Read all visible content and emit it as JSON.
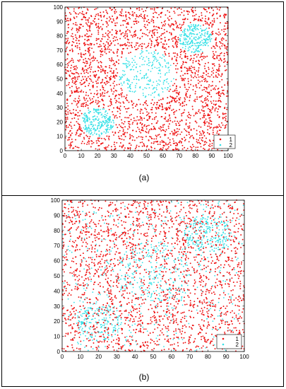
{
  "colors": {
    "class1": "#ee1111",
    "class2": "#33e0e6"
  },
  "chart_data": [
    {
      "type": "scatter",
      "caption": "(a)",
      "xlim": [
        0,
        100
      ],
      "ylim": [
        0,
        100
      ],
      "xticks": [
        "0",
        "10",
        "20",
        "30",
        "40",
        "50",
        "60",
        "70",
        "80",
        "90",
        "100"
      ],
      "yticks": [
        "0",
        "10",
        "20",
        "30",
        "40",
        "50",
        "60",
        "70",
        "80",
        "90",
        "100"
      ],
      "grid": false,
      "legend": "bottom-right",
      "series": [
        {
          "name": "1",
          "color": "#ee1111",
          "count": 2400,
          "distribution": "uniform background excluding circular clusters"
        },
        {
          "name": "2",
          "color": "#33e0e6",
          "count": 700,
          "distribution": "three circular clusters",
          "clusters": [
            {
              "cx": 50,
              "cy": 53,
              "r": 17
            },
            {
              "cx": 20,
              "cy": 20,
              "r": 10
            },
            {
              "cx": 80,
              "cy": 78,
              "r": 10
            }
          ]
        }
      ]
    },
    {
      "type": "scatter",
      "caption": "(b)",
      "xlim": [
        0,
        100
      ],
      "ylim": [
        0,
        100
      ],
      "xticks": [
        "0",
        "10",
        "20",
        "30",
        "40",
        "50",
        "60",
        "70",
        "80",
        "90",
        "100"
      ],
      "yticks": [
        "0",
        "10",
        "20",
        "30",
        "40",
        "50",
        "60",
        "70",
        "80",
        "90",
        "100"
      ],
      "grid": false,
      "legend": "bottom-right",
      "series": [
        {
          "name": "1",
          "color": "#ee1111",
          "count": 2100,
          "distribution": "uniform background with noise"
        },
        {
          "name": "2",
          "color": "#33e0e6",
          "count": 1100,
          "distribution": "diffuse clusters mixed with scattered points",
          "clusters": [
            {
              "cx": 50,
              "cy": 53,
              "r": 20
            },
            {
              "cx": 20,
              "cy": 20,
              "r": 13
            },
            {
              "cx": 80,
              "cy": 78,
              "r": 13
            }
          ]
        }
      ]
    }
  ]
}
